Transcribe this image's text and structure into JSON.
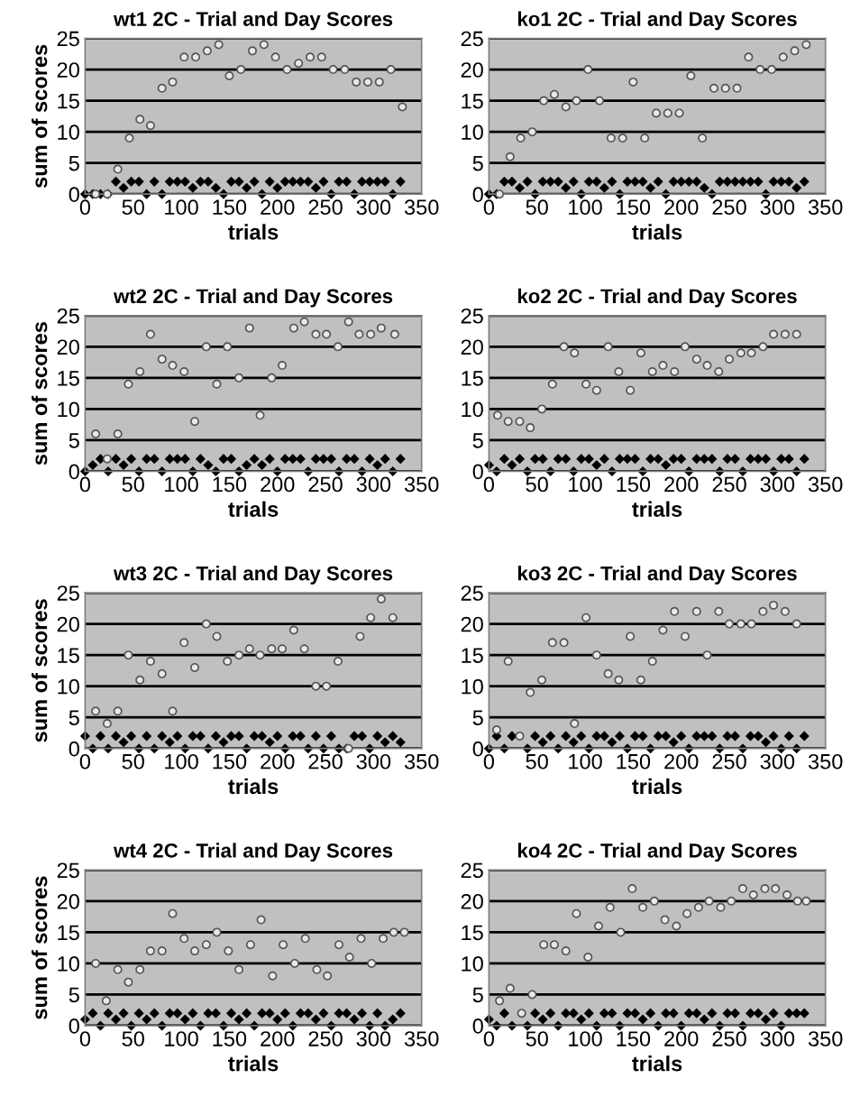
{
  "chart_data": [
    {
      "type": "scatter",
      "title": "wt1 2C - Trial and Day Scores",
      "xlabel": "trials",
      "ylabel": "sum of scores",
      "xlim": [
        0,
        350
      ],
      "xticks": [
        0,
        50,
        100,
        150,
        200,
        250,
        300,
        350
      ],
      "ylim": [
        0,
        25
      ],
      "yticks": [
        0,
        5,
        10,
        15,
        20,
        25
      ],
      "grid": "y",
      "series": [
        {
          "marker": "diamond",
          "color": "#000000",
          "x": [
            0,
            8,
            16,
            24,
            32,
            40,
            48,
            56,
            64,
            72,
            80,
            88,
            96,
            104,
            112,
            120,
            128,
            136,
            144,
            152,
            160,
            168,
            176,
            184,
            192,
            200,
            208,
            216,
            224,
            232,
            240,
            248,
            256,
            264,
            272,
            280,
            288,
            296,
            304,
            312,
            320,
            328
          ],
          "values": [
            0,
            0,
            0,
            0,
            2,
            1,
            2,
            2,
            0,
            2,
            0,
            2,
            2,
            2,
            1,
            2,
            2,
            1,
            0,
            2,
            2,
            1,
            2,
            0,
            2,
            1,
            2,
            2,
            2,
            2,
            1,
            2,
            0,
            2,
            2,
            0,
            2,
            2,
            2,
            2,
            0,
            2
          ]
        },
        {
          "marker": "circle",
          "color": "#555555",
          "x": [
            11,
            23,
            34,
            46,
            57,
            68,
            80,
            91,
            103,
            115,
            127,
            139,
            150,
            162,
            174,
            186,
            198,
            210,
            222,
            234,
            246,
            258,
            270,
            282,
            294,
            306,
            318,
            330
          ],
          "values": [
            0,
            0,
            4,
            9,
            12,
            11,
            17,
            18,
            22,
            22,
            23,
            24,
            19,
            20,
            23,
            24,
            22,
            20,
            21,
            22,
            22,
            20,
            20,
            18,
            18,
            18,
            20,
            14
          ]
        }
      ]
    },
    {
      "type": "scatter",
      "title": "ko1 2C - Trial and Day Scores",
      "xlabel": "trials",
      "xlim": [
        0,
        350
      ],
      "xticks": [
        0,
        50,
        100,
        150,
        200,
        250,
        300,
        350
      ],
      "ylim": [
        0,
        25
      ],
      "yticks": [
        0,
        5,
        10,
        15,
        20,
        25
      ],
      "grid": "y",
      "series": [
        {
          "marker": "diamond",
          "color": "#000000",
          "x": [
            0,
            8,
            16,
            24,
            32,
            40,
            48,
            56,
            64,
            72,
            80,
            88,
            96,
            104,
            112,
            120,
            128,
            136,
            144,
            152,
            160,
            168,
            176,
            184,
            192,
            200,
            208,
            216,
            224,
            232,
            240,
            248,
            256,
            264,
            272,
            280,
            288,
            296,
            304,
            312,
            320,
            328
          ],
          "values": [
            0,
            0,
            2,
            2,
            1,
            2,
            0,
            2,
            2,
            2,
            1,
            2,
            0,
            2,
            2,
            1,
            2,
            0,
            2,
            2,
            2,
            1,
            2,
            0,
            2,
            2,
            2,
            2,
            1,
            0,
            2,
            2,
            2,
            2,
            2,
            2,
            0,
            2,
            2,
            2,
            1,
            2
          ]
        },
        {
          "marker": "circle",
          "color": "#555555",
          "x": [
            11,
            22,
            33,
            45,
            57,
            68,
            80,
            91,
            103,
            115,
            127,
            139,
            150,
            162,
            174,
            186,
            198,
            210,
            222,
            234,
            246,
            258,
            270,
            282,
            294,
            306,
            318,
            330
          ],
          "values": [
            0,
            6,
            9,
            10,
            15,
            16,
            14,
            15,
            20,
            15,
            9,
            9,
            18,
            9,
            13,
            13,
            13,
            19,
            9,
            17,
            17,
            17,
            22,
            20,
            20,
            22,
            23,
            24
          ]
        }
      ]
    },
    {
      "type": "scatter",
      "title": "wt2 2C - Trial and Day Scores",
      "xlabel": "trials",
      "ylabel": "sum of scores",
      "xlim": [
        0,
        350
      ],
      "xticks": [
        0,
        50,
        100,
        150,
        200,
        250,
        300,
        350
      ],
      "ylim": [
        0,
        25
      ],
      "yticks": [
        0,
        5,
        10,
        15,
        20,
        25
      ],
      "grid": "y",
      "series": [
        {
          "marker": "diamond",
          "color": "#000000",
          "x": [
            0,
            8,
            16,
            24,
            32,
            40,
            48,
            56,
            64,
            72,
            80,
            88,
            96,
            104,
            112,
            120,
            128,
            136,
            144,
            152,
            160,
            168,
            176,
            184,
            192,
            200,
            208,
            216,
            224,
            232,
            240,
            248,
            256,
            264,
            272,
            280,
            288,
            296,
            304,
            312,
            320,
            328
          ],
          "values": [
            0,
            1,
            2,
            0,
            2,
            1,
            2,
            0,
            2,
            2,
            0,
            2,
            2,
            2,
            0,
            2,
            1,
            0,
            2,
            2,
            0,
            1,
            2,
            1,
            2,
            0,
            2,
            2,
            2,
            0,
            2,
            2,
            2,
            0,
            2,
            2,
            0,
            2,
            1,
            2,
            0,
            2
          ]
        },
        {
          "marker": "circle",
          "color": "#555555",
          "x": [
            11,
            23,
            34,
            45,
            57,
            68,
            80,
            91,
            103,
            114,
            126,
            137,
            148,
            160,
            171,
            182,
            194,
            205,
            217,
            228,
            240,
            251,
            263,
            274,
            285,
            297,
            308,
            322
          ],
          "values": [
            6,
            2,
            6,
            14,
            16,
            22,
            18,
            17,
            16,
            8,
            20,
            14,
            20,
            15,
            23,
            9,
            15,
            17,
            23,
            24,
            22,
            22,
            20,
            24,
            22,
            22,
            23,
            22
          ]
        }
      ]
    },
    {
      "type": "scatter",
      "title": "ko2 2C - Trial and Day Scores",
      "xlabel": "trials",
      "xlim": [
        0,
        350
      ],
      "xticks": [
        0,
        50,
        100,
        150,
        200,
        250,
        300,
        350
      ],
      "ylim": [
        0,
        25
      ],
      "yticks": [
        0,
        5,
        10,
        15,
        20,
        25
      ],
      "grid": "y",
      "series": [
        {
          "marker": "diamond",
          "color": "#000000",
          "x": [
            0,
            8,
            16,
            24,
            32,
            40,
            48,
            56,
            64,
            72,
            80,
            88,
            96,
            104,
            112,
            120,
            128,
            136,
            144,
            152,
            160,
            168,
            176,
            184,
            192,
            200,
            208,
            216,
            224,
            232,
            240,
            248,
            256,
            264,
            272,
            280,
            288,
            296,
            304,
            312,
            320,
            328
          ],
          "values": [
            1,
            0,
            2,
            1,
            2,
            0,
            2,
            2,
            0,
            2,
            2,
            0,
            2,
            2,
            1,
            2,
            0,
            2,
            2,
            2,
            0,
            2,
            2,
            1,
            2,
            2,
            0,
            2,
            2,
            2,
            0,
            2,
            2,
            0,
            2,
            2,
            2,
            0,
            2,
            2,
            0,
            2
          ]
        },
        {
          "marker": "circle",
          "color": "#555555",
          "x": [
            9,
            20,
            32,
            43,
            55,
            66,
            78,
            89,
            101,
            112,
            124,
            135,
            147,
            158,
            170,
            181,
            193,
            204,
            216,
            227,
            239,
            250,
            262,
            273,
            285,
            296,
            308,
            320
          ],
          "values": [
            9,
            8,
            8,
            7,
            10,
            14,
            20,
            19,
            14,
            13,
            20,
            16,
            13,
            19,
            16,
            17,
            16,
            20,
            18,
            17,
            16,
            18,
            19,
            19,
            20,
            22,
            22,
            22
          ]
        }
      ]
    },
    {
      "type": "scatter",
      "title": "wt3 2C - Trial and Day Scores",
      "xlabel": "trials",
      "ylabel": "sum of scores",
      "xlim": [
        0,
        350
      ],
      "xticks": [
        0,
        50,
        100,
        150,
        200,
        250,
        300,
        350
      ],
      "ylim": [
        0,
        25
      ],
      "yticks": [
        0,
        5,
        10,
        15,
        20,
        25
      ],
      "grid": "y",
      "series": [
        {
          "marker": "diamond",
          "color": "#000000",
          "x": [
            0,
            8,
            16,
            24,
            32,
            40,
            48,
            56,
            64,
            72,
            80,
            88,
            96,
            104,
            112,
            120,
            128,
            136,
            144,
            152,
            160,
            168,
            176,
            184,
            192,
            200,
            208,
            216,
            224,
            232,
            240,
            248,
            256,
            264,
            272,
            280,
            288,
            296,
            304,
            312,
            320,
            328
          ],
          "values": [
            2,
            0,
            2,
            0,
            2,
            1,
            2,
            0,
            2,
            0,
            2,
            1,
            2,
            0,
            2,
            2,
            0,
            2,
            1,
            2,
            2,
            0,
            2,
            2,
            1,
            2,
            0,
            2,
            2,
            0,
            2,
            0,
            2,
            0,
            0,
            2,
            2,
            0,
            2,
            1,
            2,
            1
          ]
        },
        {
          "marker": "circle",
          "color": "#555555",
          "x": [
            11,
            23,
            34,
            45,
            57,
            68,
            80,
            91,
            103,
            114,
            126,
            137,
            148,
            160,
            171,
            182,
            194,
            205,
            217,
            228,
            240,
            251,
            263,
            274,
            286,
            297,
            308,
            320
          ],
          "values": [
            6,
            4,
            6,
            15,
            11,
            14,
            12,
            6,
            17,
            13,
            20,
            18,
            14,
            15,
            16,
            15,
            16,
            16,
            19,
            16,
            10,
            10,
            14,
            0,
            18,
            21,
            24,
            21
          ]
        }
      ]
    },
    {
      "type": "scatter",
      "title": "ko3 2C - Trial and Day Scores",
      "xlabel": "trials",
      "xlim": [
        0,
        350
      ],
      "xticks": [
        0,
        50,
        100,
        150,
        200,
        250,
        300,
        350
      ],
      "ylim": [
        0,
        25
      ],
      "yticks": [
        0,
        5,
        10,
        15,
        20,
        25
      ],
      "grid": "y",
      "series": [
        {
          "marker": "diamond",
          "color": "#000000",
          "x": [
            0,
            8,
            16,
            24,
            32,
            40,
            48,
            56,
            64,
            72,
            80,
            88,
            96,
            104,
            112,
            120,
            128,
            136,
            144,
            152,
            160,
            168,
            176,
            184,
            192,
            200,
            208,
            216,
            224,
            232,
            240,
            248,
            256,
            264,
            272,
            280,
            288,
            296,
            304,
            312,
            320,
            328
          ],
          "values": [
            0,
            2,
            0,
            2,
            null,
            0,
            2,
            1,
            2,
            0,
            2,
            1,
            2,
            0,
            2,
            2,
            1,
            2,
            0,
            2,
            2,
            0,
            2,
            2,
            1,
            2,
            0,
            2,
            2,
            2,
            0,
            2,
            2,
            0,
            2,
            2,
            1,
            2,
            0,
            2,
            0,
            2
          ]
        },
        {
          "marker": "circle",
          "color": "#555555",
          "x": [
            8,
            20,
            32,
            43,
            55,
            66,
            78,
            89,
            101,
            112,
            124,
            135,
            147,
            158,
            170,
            181,
            193,
            204,
            216,
            227,
            239,
            250,
            262,
            273,
            285,
            296,
            308,
            320
          ],
          "values": [
            3,
            14,
            2,
            9,
            11,
            17,
            17,
            4,
            21,
            15,
            12,
            11,
            18,
            11,
            14,
            19,
            22,
            18,
            22,
            15,
            22,
            20,
            20,
            20,
            22,
            23,
            22,
            20
          ]
        }
      ]
    },
    {
      "type": "scatter",
      "title": "wt4 2C - Trial and Day Scores",
      "xlabel": "trials",
      "ylabel": "sum of scores",
      "xlim": [
        0,
        350
      ],
      "xticks": [
        0,
        50,
        100,
        150,
        200,
        250,
        300,
        350
      ],
      "ylim": [
        0,
        25
      ],
      "yticks": [
        0,
        5,
        10,
        15,
        20,
        25
      ],
      "grid": "y",
      "series": [
        {
          "marker": "diamond",
          "color": "#000000",
          "x": [
            0,
            8,
            16,
            24,
            32,
            40,
            48,
            56,
            64,
            72,
            80,
            88,
            96,
            104,
            112,
            120,
            128,
            136,
            144,
            152,
            160,
            168,
            176,
            184,
            192,
            200,
            208,
            216,
            224,
            232,
            240,
            248,
            256,
            264,
            272,
            280,
            288,
            296,
            304,
            312,
            320,
            328
          ],
          "values": [
            1,
            2,
            0,
            2,
            1,
            2,
            0,
            2,
            1,
            2,
            0,
            2,
            2,
            1,
            2,
            0,
            2,
            2,
            0,
            2,
            1,
            2,
            0,
            2,
            2,
            1,
            2,
            0,
            2,
            2,
            1,
            2,
            0,
            2,
            2,
            1,
            2,
            0,
            2,
            0,
            1,
            2
          ]
        },
        {
          "marker": "circle",
          "color": "#555555",
          "x": [
            11,
            22,
            34,
            45,
            57,
            68,
            80,
            91,
            103,
            114,
            126,
            137,
            149,
            160,
            172,
            183,
            195,
            206,
            218,
            229,
            241,
            252,
            264,
            275,
            287,
            298,
            310,
            321,
            332
          ],
          "values": [
            10,
            4,
            9,
            7,
            9,
            12,
            12,
            18,
            14,
            12,
            13,
            15,
            12,
            9,
            13,
            17,
            8,
            13,
            10,
            14,
            9,
            8,
            13,
            11,
            14,
            10,
            14,
            15,
            15
          ]
        }
      ]
    },
    {
      "type": "scatter",
      "title": "ko4 2C - Trial and Day Scores",
      "xlabel": "trials",
      "xlim": [
        0,
        350
      ],
      "xticks": [
        0,
        50,
        100,
        150,
        200,
        250,
        300,
        350
      ],
      "ylim": [
        0,
        25
      ],
      "yticks": [
        0,
        5,
        10,
        15,
        20,
        25
      ],
      "grid": "y",
      "series": [
        {
          "marker": "diamond",
          "color": "#000000",
          "x": [
            0,
            8,
            16,
            24,
            32,
            40,
            48,
            56,
            64,
            72,
            80,
            88,
            96,
            104,
            112,
            120,
            128,
            136,
            144,
            152,
            160,
            168,
            176,
            184,
            192,
            200,
            208,
            216,
            224,
            232,
            240,
            248,
            256,
            264,
            272,
            280,
            288,
            296,
            304,
            312,
            320,
            328
          ],
          "values": [
            1,
            0,
            2,
            0,
            null,
            0,
            2,
            1,
            2,
            0,
            2,
            2,
            1,
            2,
            0,
            2,
            2,
            0,
            2,
            2,
            1,
            2,
            0,
            2,
            2,
            0,
            2,
            2,
            1,
            2,
            0,
            2,
            2,
            0,
            2,
            2,
            1,
            2,
            0,
            2,
            2,
            2
          ]
        },
        {
          "marker": "circle",
          "color": "#555555",
          "x": [
            11,
            22,
            34,
            45,
            57,
            68,
            80,
            91,
            103,
            114,
            126,
            137,
            149,
            160,
            172,
            183,
            195,
            206,
            218,
            229,
            241,
            252,
            264,
            275,
            287,
            298,
            310,
            321,
            330
          ],
          "values": [
            4,
            6,
            2,
            5,
            13,
            13,
            12,
            18,
            11,
            16,
            19,
            15,
            22,
            19,
            20,
            17,
            16,
            18,
            19,
            20,
            19,
            20,
            22,
            21,
            22,
            22,
            21,
            20,
            20
          ]
        }
      ]
    }
  ]
}
